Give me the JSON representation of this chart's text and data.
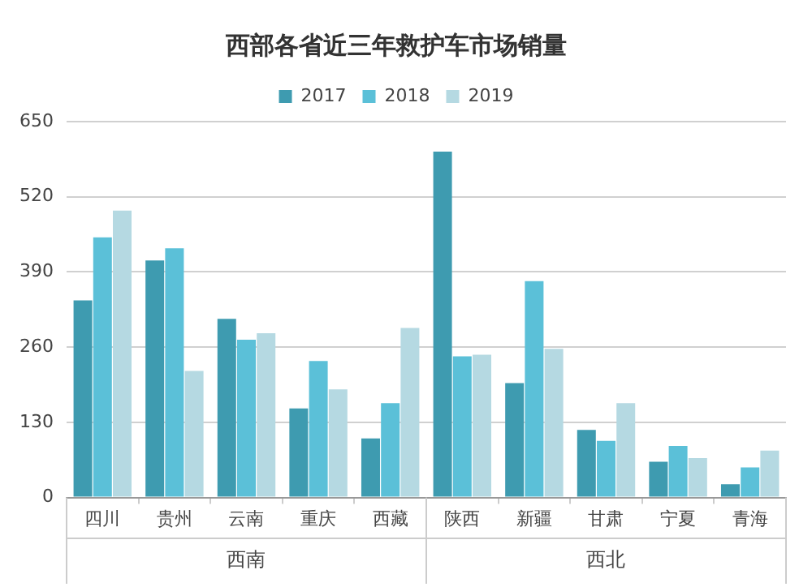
{
  "chart_data": {
    "type": "bar",
    "title": "西部各省近三年救护车市场销量",
    "categories": [
      "四川",
      "贵州",
      "云南",
      "重庆",
      "西藏",
      "陕西",
      "新疆",
      "甘肃",
      "宁夏",
      "青海"
    ],
    "series": [
      {
        "name": "2017",
        "color": "#3e9bb0",
        "values": [
          341,
          410,
          309,
          154,
          102,
          598,
          198,
          117,
          62,
          23
        ]
      },
      {
        "name": "2018",
        "color": "#5bc0d8",
        "values": [
          450,
          431,
          273,
          236,
          163,
          244,
          374,
          98,
          89,
          52
        ]
      },
      {
        "name": "2019",
        "color": "#b5d9e2",
        "values": [
          496,
          219,
          284,
          187,
          293,
          247,
          257,
          163,
          68,
          81
        ]
      }
    ],
    "ylim": [
      0,
      650
    ],
    "yticks": [
      0,
      130,
      260,
      390,
      520,
      650
    ],
    "grid": "y",
    "legend": "top",
    "annotations": [
      "西南",
      "西北"
    ]
  }
}
